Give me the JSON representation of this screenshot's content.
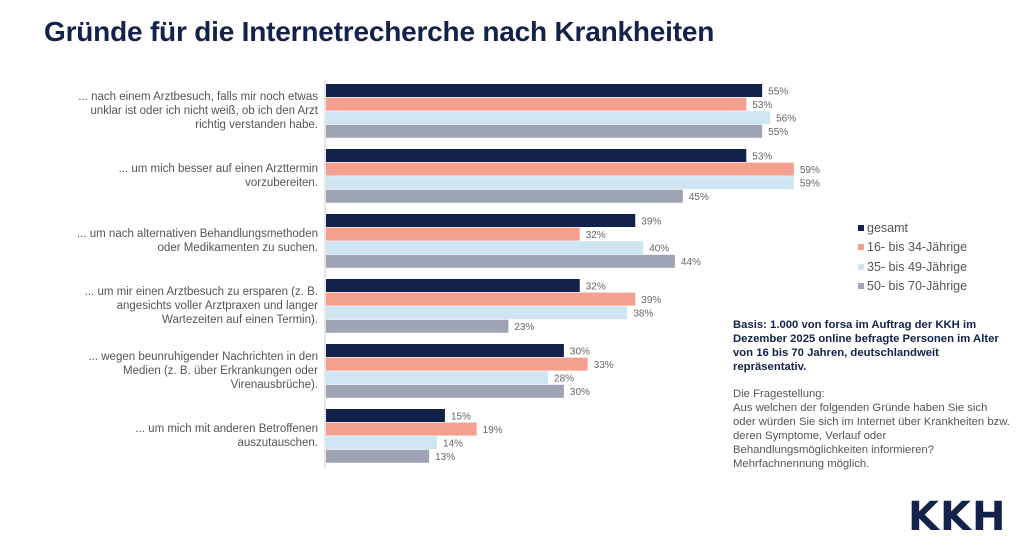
{
  "title": "Gründe für die Internetrecherche nach Krankheiten",
  "chart_data": {
    "type": "bar",
    "orientation": "horizontal",
    "categories": [
      "... nach einem Arztbesuch, falls mir noch etwas unklar ist oder ich nicht weiß, ob ich den Arzt richtig verstanden habe.",
      "... um mich besser auf einen Arzttermin vorzubereiten.",
      "... um nach alternativen Behandlungsmethoden oder Medikamenten zu suchen.",
      "... um mir einen Arztbesuch zu ersparen (z. B. angesichts voller Arztpraxen und langer Wartezeiten auf einen Termin).",
      "... wegen beunruhigender Nachrichten in den Medien (z. B. über Erkrankungen oder Virenausbrüche).",
      "... um mich mit anderen Betroffenen auszutauschen."
    ],
    "category_lines": [
      [
        "... nach einem Arztbesuch, falls mir noch etwas",
        "unklar ist oder ich nicht weiß, ob ich den Arzt",
        "richtig verstanden habe."
      ],
      [
        "... um mich besser auf einen Arzttermin",
        "vorzubereiten."
      ],
      [
        "... um nach alternativen Behandlungsmethoden",
        "oder Medikamenten zu suchen."
      ],
      [
        "... um mir einen Arztbesuch zu ersparen (z. B.",
        "angesichts voller Arztpraxen und langer",
        "Wartezeiten auf einen Termin)."
      ],
      [
        "... wegen beunruhigender Nachrichten in den",
        "Medien (z. B. über Erkrankungen oder",
        "Virenausbrüche)."
      ],
      [
        "... um mich mit anderen Betroffenen",
        "auszutauschen."
      ]
    ],
    "series": [
      {
        "name": "gesamt",
        "color": "#13224a",
        "values": [
          55,
          53,
          39,
          32,
          30,
          15
        ]
      },
      {
        "name": "16- bis 34-Jährige",
        "color": "#f4a08f",
        "values": [
          53,
          59,
          32,
          39,
          33,
          19
        ]
      },
      {
        "name": "35- bis 49-Jährige",
        "color": "#cfe6f2",
        "values": [
          56,
          59,
          40,
          38,
          28,
          14
        ]
      },
      {
        "name": "50- bis 70-Jährige",
        "color": "#9ea4b4",
        "values": [
          55,
          45,
          44,
          23,
          30,
          13
        ]
      }
    ],
    "unit": "%",
    "xlim": [
      0,
      60
    ],
    "grid": false,
    "legend_position": "right"
  },
  "basis": "Basis: 1.000 von forsa im Auftrag der KKH im Dezember 2025 online befragte Personen im Alter von 16 bis 70 Jahren, deutschlandweit repräsentativ.",
  "question_label": "Die Fragestellung:",
  "question": "Aus welchen der folgenden Gründe haben Sie sich oder würden Sie sich im Internet über Krankheiten bzw. deren Symptome, Verlauf oder Behandlungsmöglichkeiten informieren? Mehrfachnennung möglich.",
  "logo": "KKH"
}
